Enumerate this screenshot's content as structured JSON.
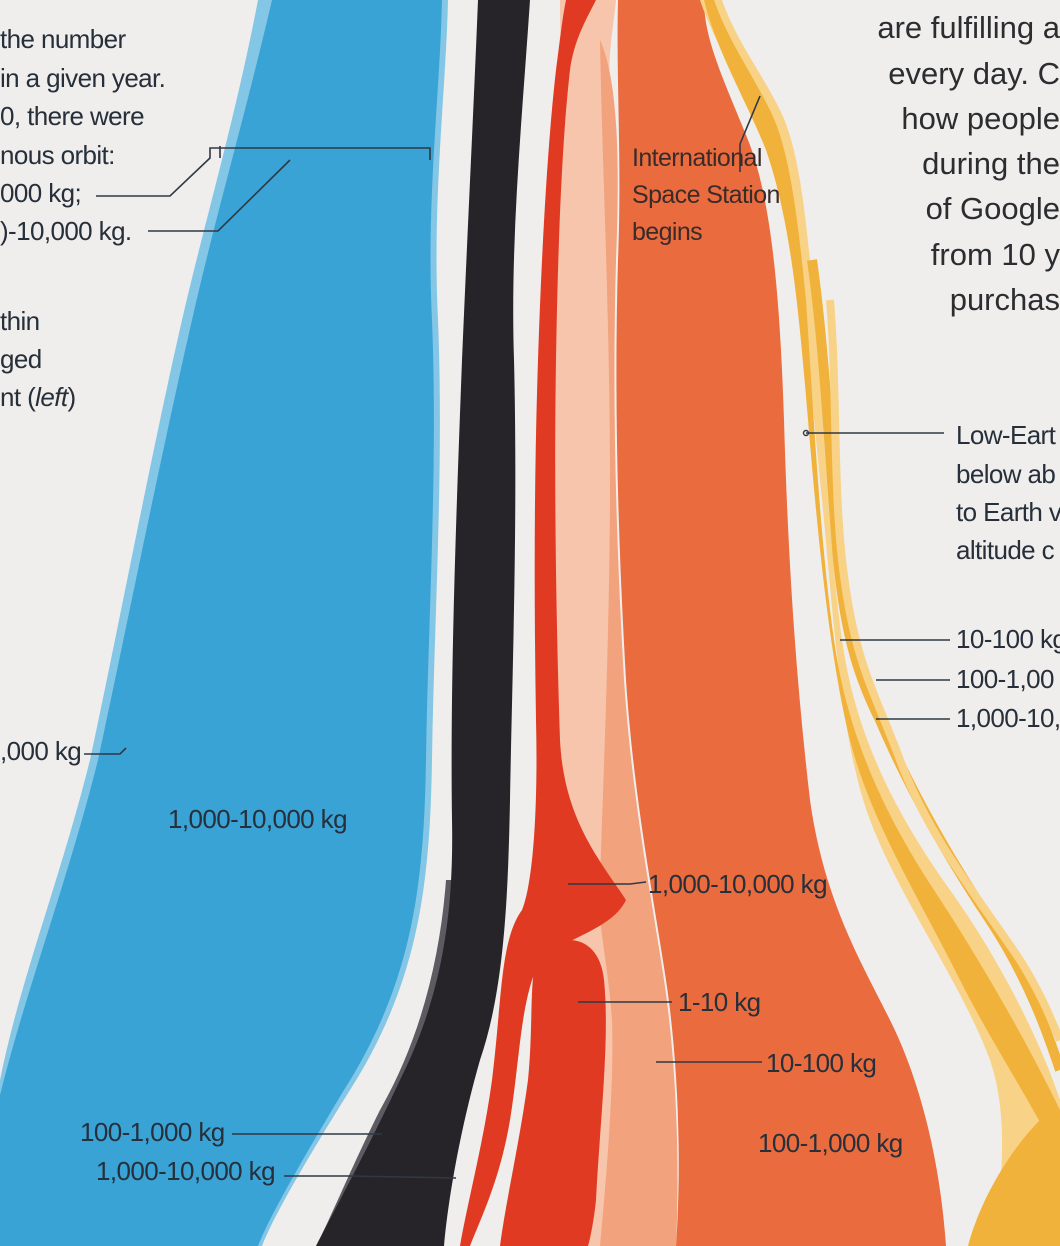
{
  "left_text": {
    "lines": [
      "the number",
      "in a given year.",
      "0, there were",
      "nous orbit:",
      "000 kg;",
      ")-10,000 kg."
    ],
    "lines2": [
      "thin",
      "ged"
    ],
    "left_prefix": "nt (",
    "left_word": "left",
    "left_suffix": ")"
  },
  "right_text": {
    "lines": [
      "are fulfilling a",
      "every day. C",
      "how people",
      "during the",
      "of Google",
      "from 10 y",
      "purchas"
    ]
  },
  "leo_note": [
    "Low-Eart",
    "below ab",
    "to Earth v",
    "altitude c"
  ],
  "chart_data": {
    "type": "area",
    "title": "",
    "annotations": {
      "iss": [
        "International",
        "Space Station",
        "begins"
      ]
    },
    "series_labels": {
      "blue_left_partial": ",000 kg",
      "blue_main": "1,000-10,000 kg",
      "dark_a": "100-1,000 kg",
      "dark_b": "1,000-10,000 kg",
      "red": "1,000-10,000 kg",
      "peach": "1-10 kg",
      "salmon": "10-100 kg",
      "orange": "100-1,000 kg",
      "yellow_a": "10-100 kg",
      "yellow_b": "100-1,00",
      "yellow_c": "1,000-10,"
    },
    "colors": {
      "background": "#efeeec",
      "blue": "#3aa3d6",
      "blue_light": "#84c6e6",
      "dark": "#262429",
      "dark_gray": "#5c5b62",
      "red": "#e13a23",
      "peach": "#f6c5ac",
      "salmon": "#f2a27c",
      "orange": "#ea6c3e",
      "yellow": "#f1b23b",
      "yellow_light": "#f8d387"
    }
  }
}
